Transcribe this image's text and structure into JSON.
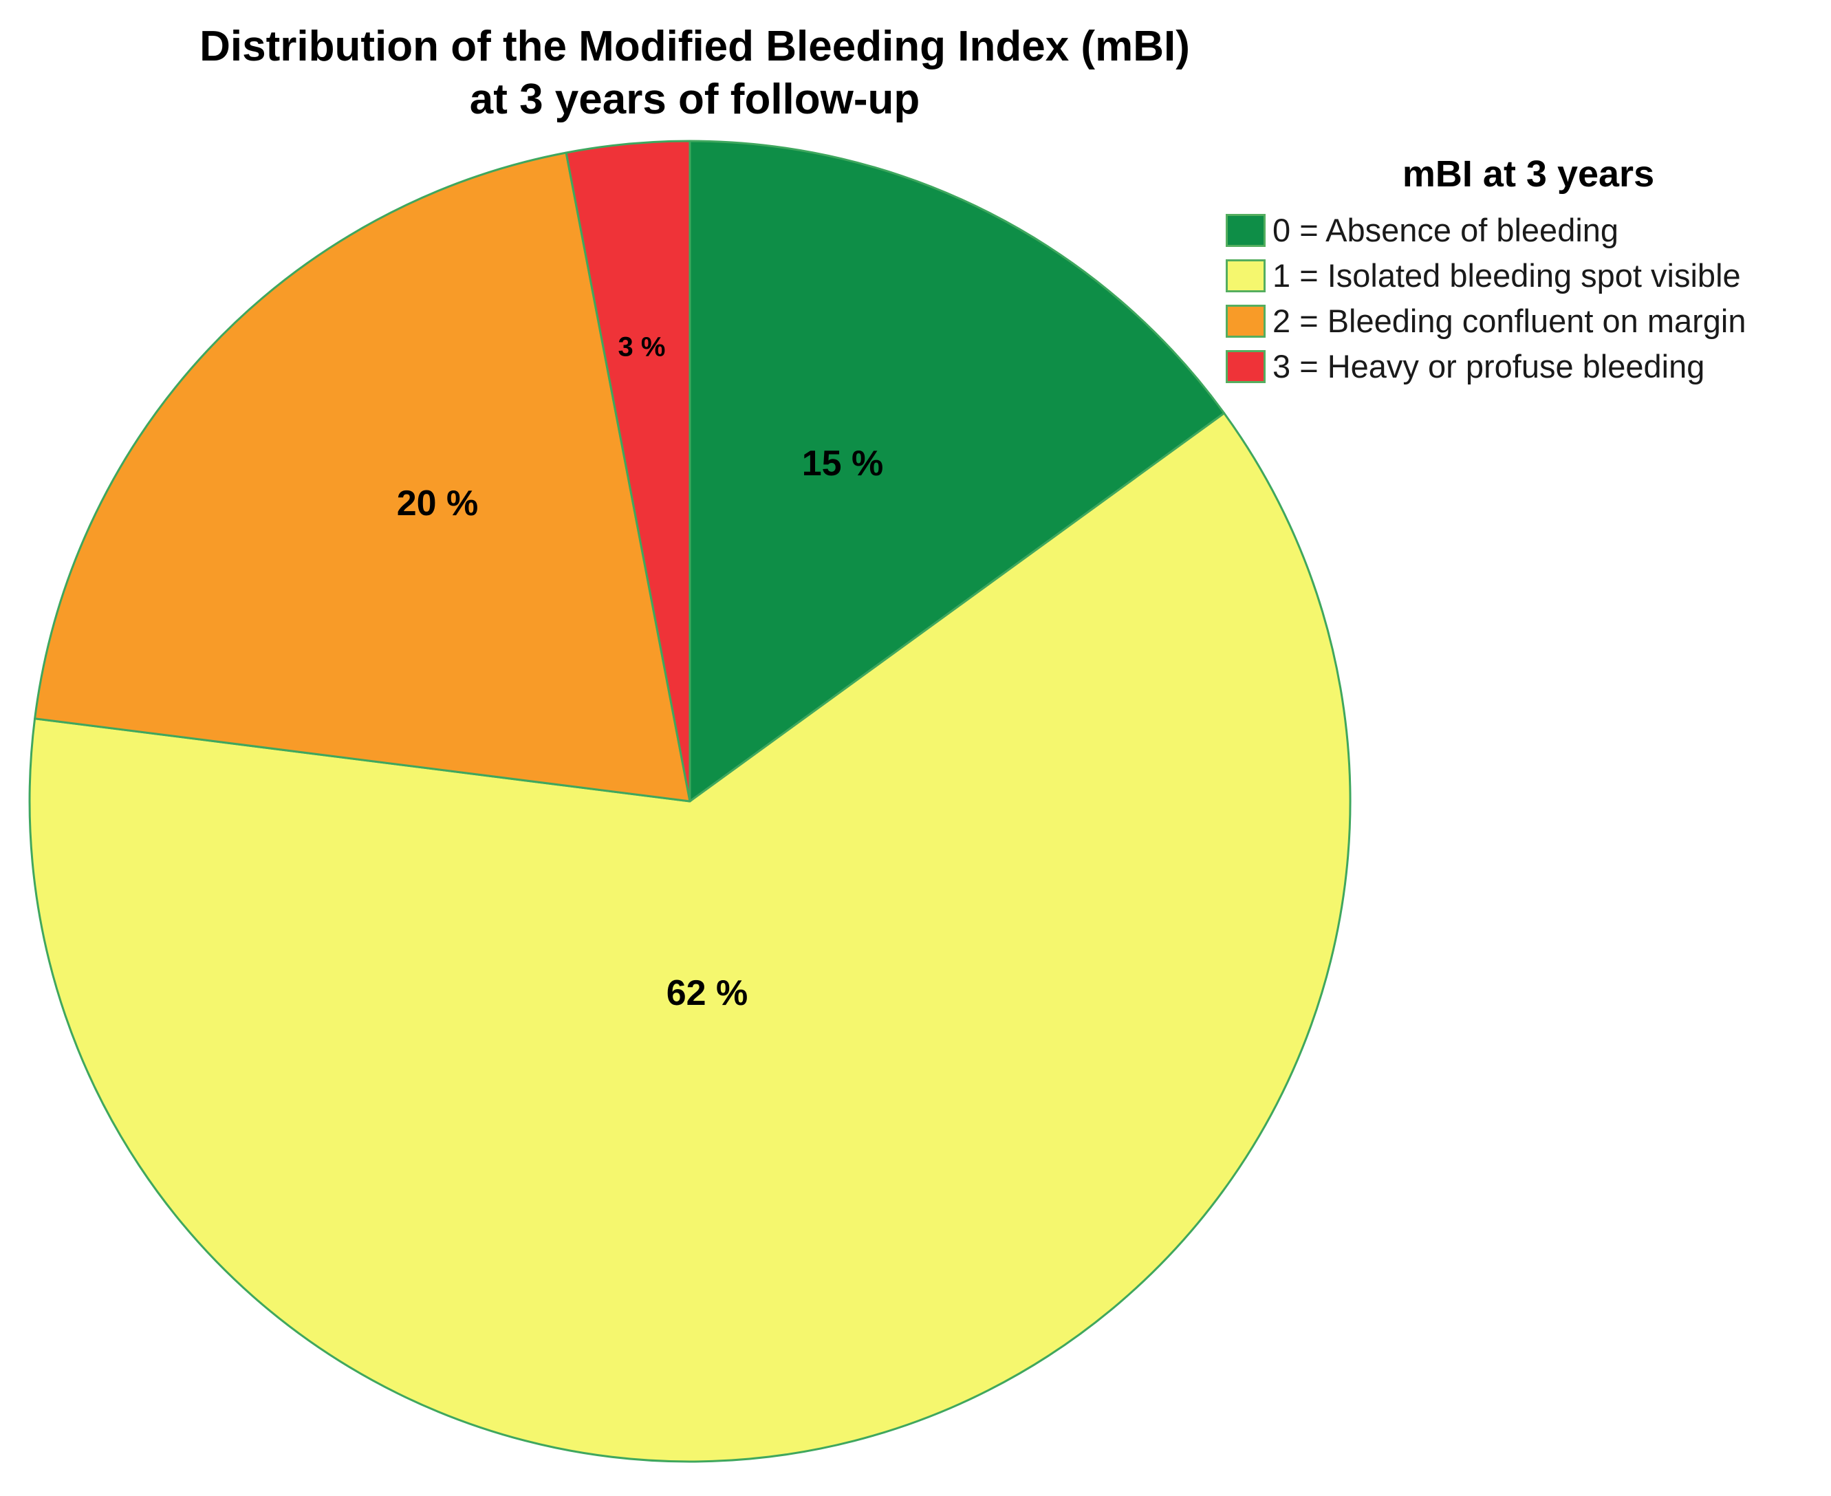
{
  "title": {
    "line1": "Distribution of the Modified Bleeding Index (mBI)",
    "line2": "at 3 years of follow-up"
  },
  "legend": {
    "title": "mBI at 3 years",
    "swatch_border_color": "#54AE5F"
  },
  "chart_data": {
    "type": "pie",
    "title": "Distribution of the Modified Bleeding Index (mBI) at 3 years of follow-up",
    "legend_title": "mBI at 3 years",
    "legend_position": "upper right",
    "start_angle_deg": 0,
    "direction": "clockwise",
    "outline_color": "#3FA75E",
    "background_color": "#FFFFFF",
    "slices": [
      {
        "category": "0 = Absence of bleeding",
        "value": 15,
        "data_label": "15 %",
        "color": "#0E8E47"
      },
      {
        "category": "1 = Isolated bleeding spot visible",
        "value": 62,
        "data_label": "62 %",
        "color": "#F5F76E"
      },
      {
        "category": "2 = Bleeding confluent on margin",
        "value": 20,
        "data_label": "20 %",
        "color": "#F89B28"
      },
      {
        "category": "3 = Heavy or profuse bleeding",
        "value": 3,
        "data_label": "3 %",
        "color": "#EF3338"
      }
    ]
  }
}
